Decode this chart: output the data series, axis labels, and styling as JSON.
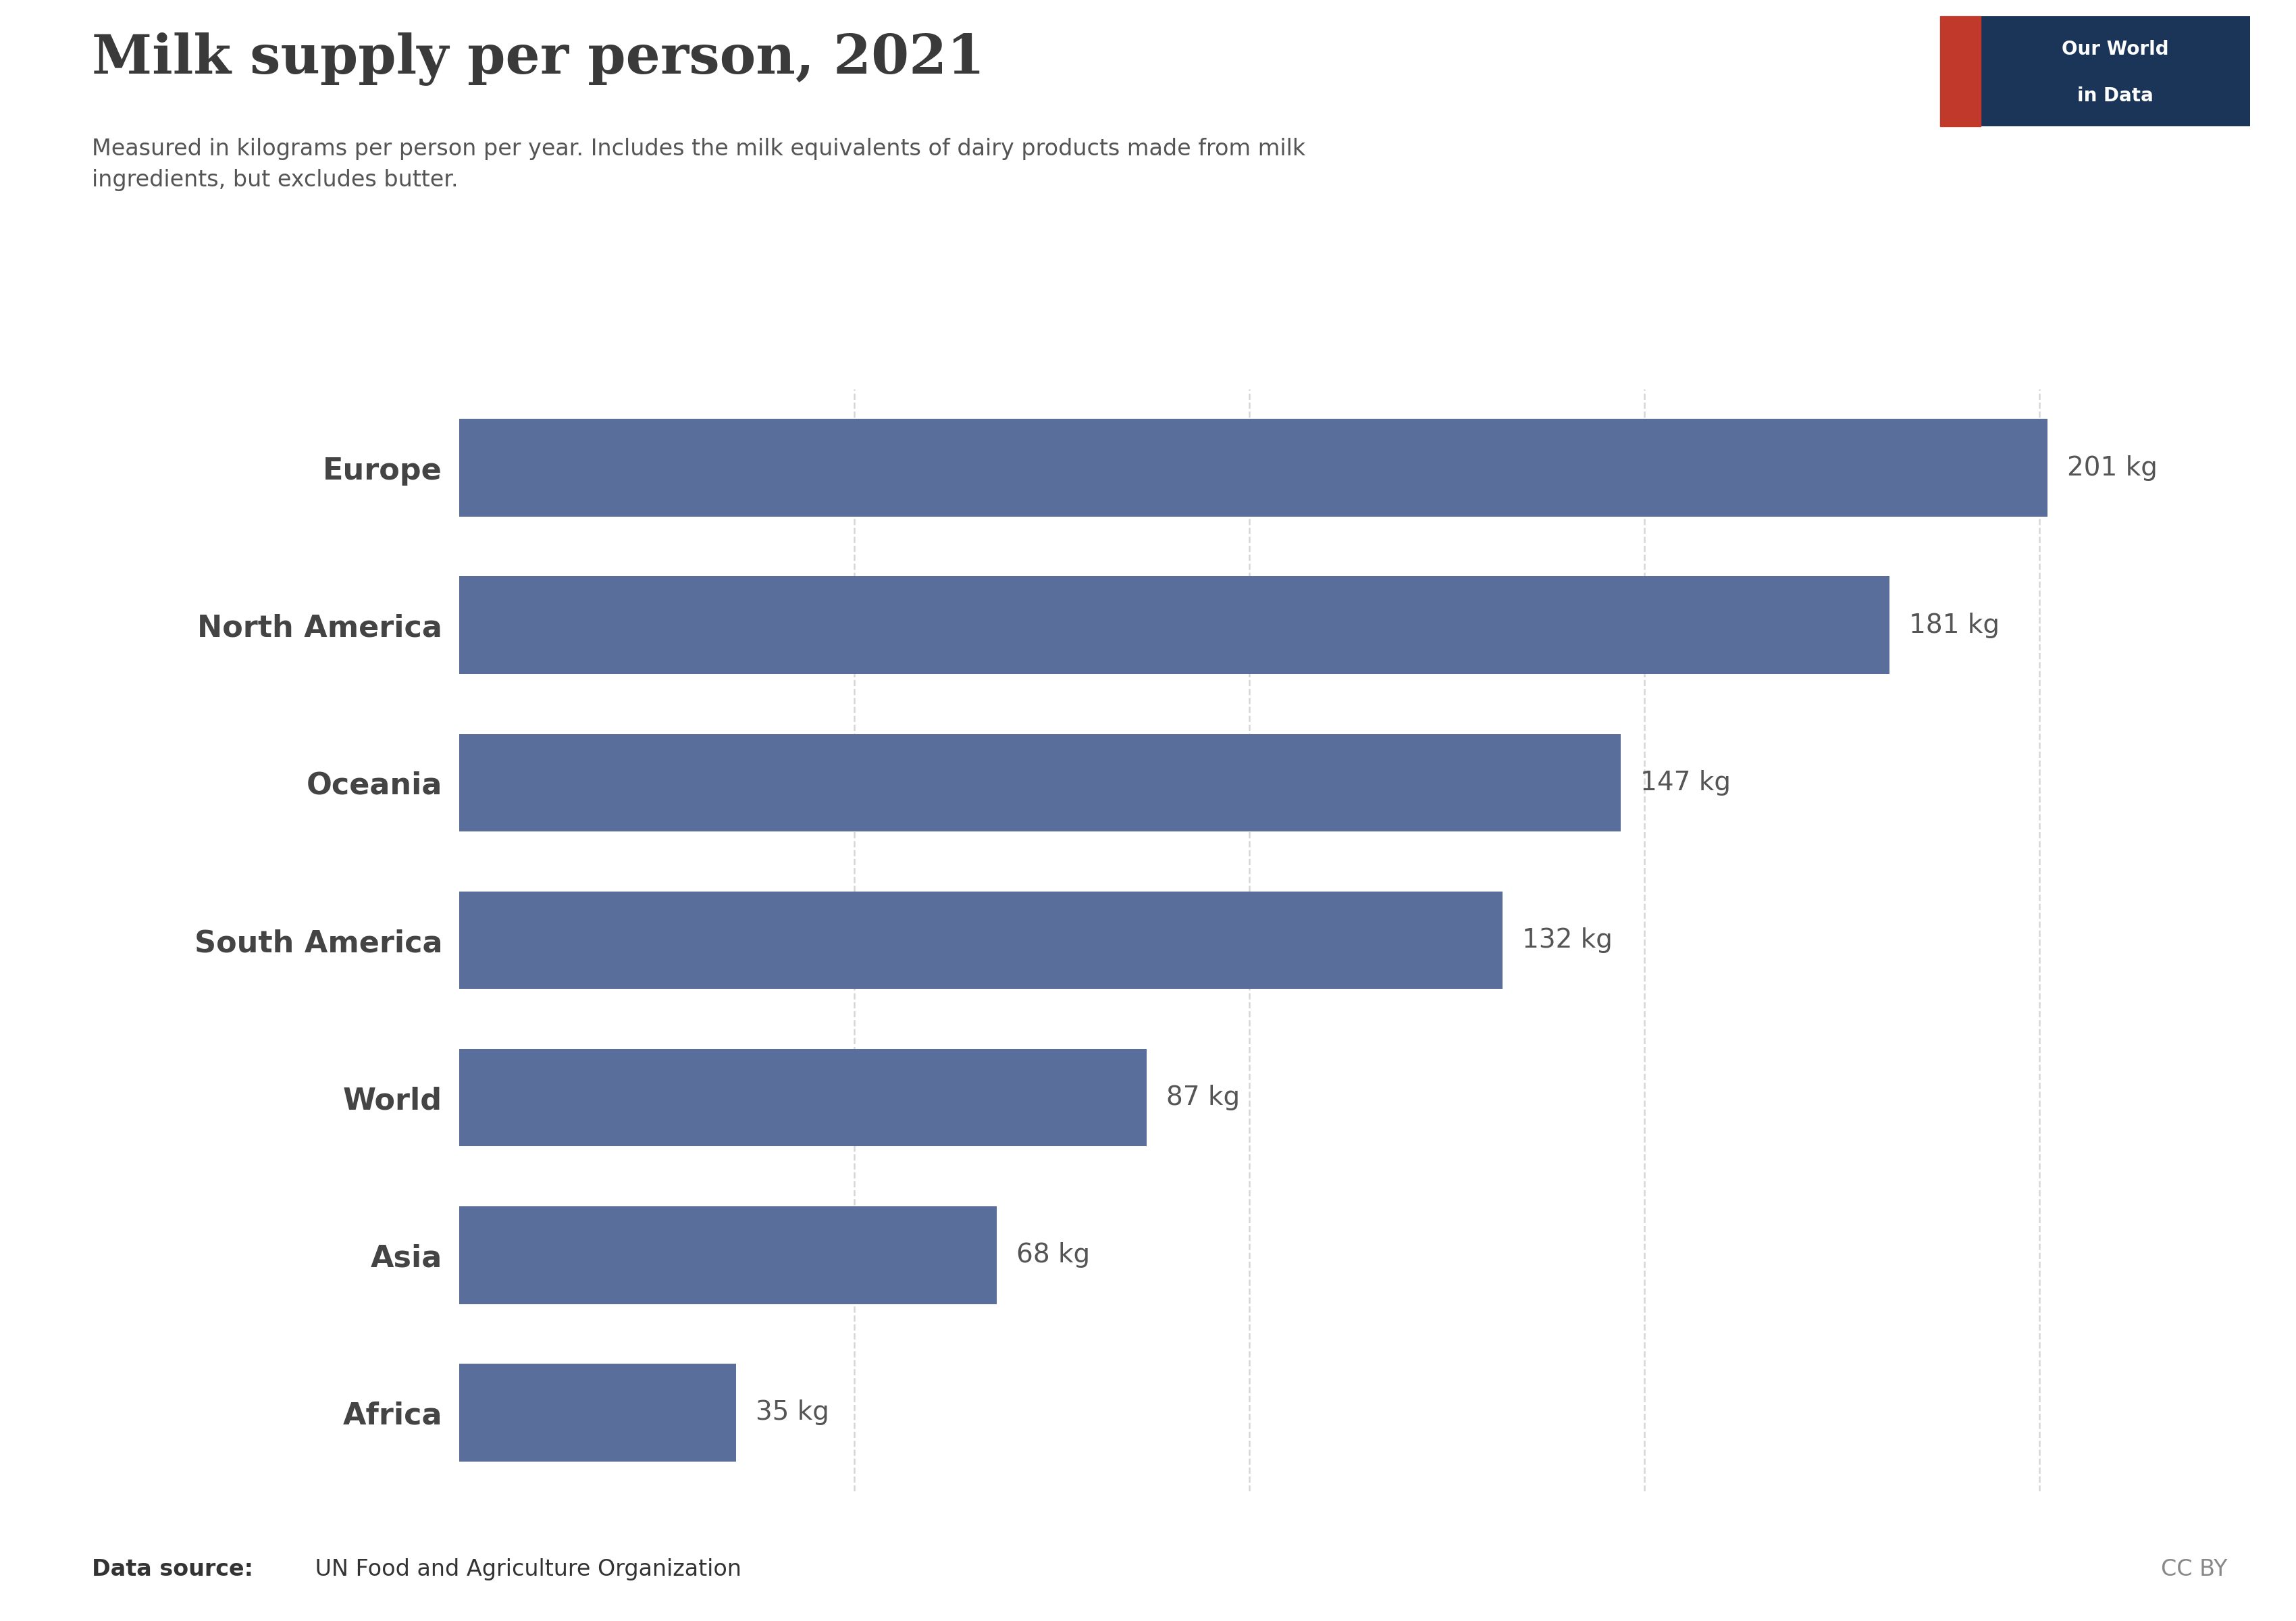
{
  "title": "Milk supply per person, 2021",
  "subtitle_line1": "Measured in kilograms per person per year. Includes the milk equivalents of dairy products made from milk",
  "subtitle_line2": "ingredients, but excludes butter.",
  "categories": [
    "Europe",
    "North America",
    "Oceania",
    "South America",
    "World",
    "Asia",
    "Africa"
  ],
  "values": [
    201,
    181,
    147,
    132,
    87,
    68,
    35
  ],
  "bar_color": "#5a6e9c",
  "background_color": "#ffffff",
  "label_fontsize": 32,
  "value_fontsize": 28,
  "title_fontsize": 58,
  "subtitle_fontsize": 24,
  "footer_fontsize": 24,
  "data_source_bold": "Data source:",
  "data_source_text": " UN Food and Agriculture Organization",
  "cc_by_text": "CC BY",
  "logo_bg_color": "#1a3557",
  "logo_text_line1": "Our World",
  "logo_text_line2": "in Data",
  "logo_red_color": "#c0392b",
  "xlim": [
    0,
    215
  ],
  "grid_color": "#cccccc",
  "tick_values": [
    0,
    50,
    100,
    150,
    200
  ]
}
